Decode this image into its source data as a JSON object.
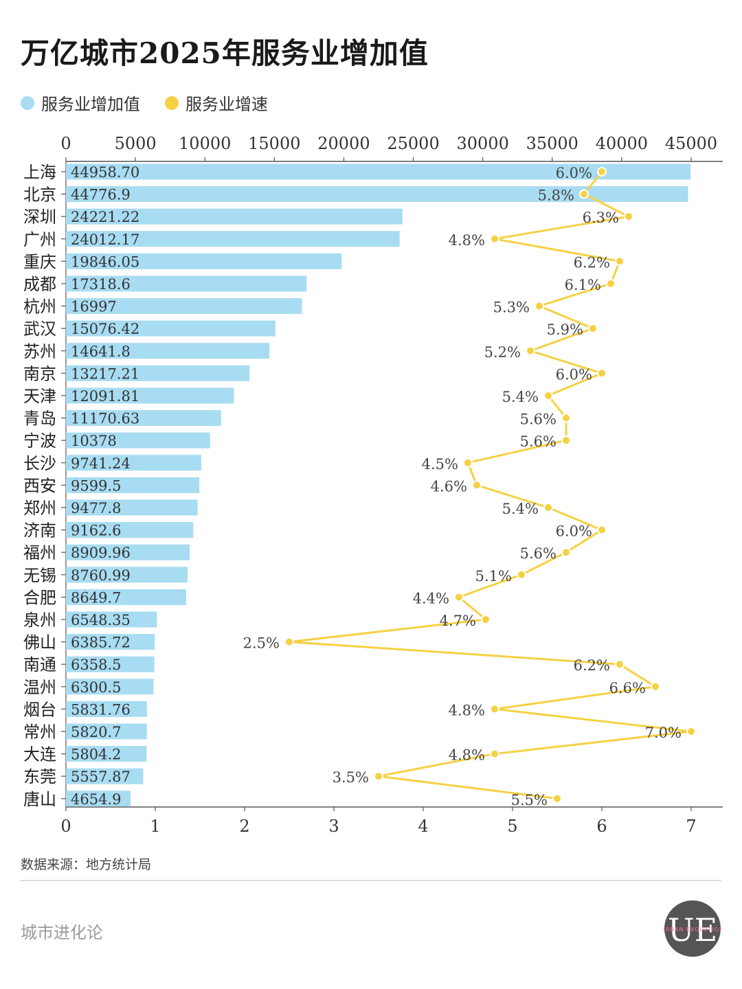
{
  "title": "万亿城市2025年服务业增加值",
  "legend": [
    {
      "label": "服务业增加值",
      "color": "#a8dcf2"
    },
    {
      "label": "服务业增速",
      "color": "#f5d142"
    }
  ],
  "source": "数据来源：地方统计局",
  "brand": "城市进化论",
  "logo": {
    "mark": "UE",
    "text": "URBAN EVOLUTION"
  },
  "chart_data": {
    "type": "bar",
    "orientation": "horizontal",
    "categories": [
      "上海",
      "北京",
      "深圳",
      "广州",
      "重庆",
      "成都",
      "杭州",
      "武汉",
      "苏州",
      "南京",
      "天津",
      "青岛",
      "宁波",
      "长沙",
      "西安",
      "郑州",
      "济南",
      "福州",
      "无锡",
      "合肥",
      "泉州",
      "佛山",
      "南通",
      "温州",
      "烟台",
      "常州",
      "大连",
      "东莞",
      "唐山"
    ],
    "series": [
      {
        "name": "服务业增加值",
        "type": "bar",
        "axis": "top",
        "color": "#a8dcf2",
        "value_labels": [
          "44958.70",
          "44776.9",
          "24221.22",
          "24012.17",
          "19846.05",
          "17318.6",
          "16997",
          "15076.42",
          "14641.8",
          "13217.21",
          "12091.81",
          "11170.63",
          "10378",
          "9741.24",
          "9599.5",
          "9477.8",
          "9162.6",
          "8909.96",
          "8760.99",
          "8649.7",
          "6548.35",
          "6385.72",
          "6358.5",
          "6300.5",
          "5831.76",
          "5820.7",
          "5804.2",
          "5557.87",
          "4654.9"
        ]
      },
      {
        "name": "服务业增速",
        "type": "line",
        "axis": "bottom",
        "color": "#f5d142",
        "values": [
          6.0,
          5.8,
          6.3,
          4.8,
          6.2,
          6.1,
          5.3,
          5.9,
          5.2,
          6.0,
          5.4,
          5.6,
          5.6,
          4.5,
          4.6,
          5.4,
          6.0,
          5.6,
          5.1,
          4.4,
          4.7,
          2.5,
          6.2,
          6.6,
          4.8,
          7.0,
          4.8,
          3.5,
          5.5
        ],
        "value_labels": [
          "6.0%",
          "5.8%",
          "6.3%",
          "4.8%",
          "6.2%",
          "6.1%",
          "5.3%",
          "5.9%",
          "5.2%",
          "6.0%",
          "5.4%",
          "5.6%",
          "5.6%",
          "4.5%",
          "4.6%",
          "5.4%",
          "6.0%",
          "5.6%",
          "5.1%",
          "4.4%",
          "4.7%",
          "2.5%",
          "6.2%",
          "6.6%",
          "4.8%",
          "7.0%",
          "4.8%",
          "3.5%",
          "5.5%"
        ]
      }
    ],
    "x_top": {
      "range": [
        0,
        45000
      ],
      "ticks": [
        0,
        5000,
        10000,
        15000,
        20000,
        25000,
        30000,
        35000,
        40000,
        45000
      ]
    },
    "x_bottom": {
      "range": [
        0,
        7
      ],
      "ticks": [
        0,
        1,
        2,
        3,
        4,
        5,
        6,
        7
      ]
    },
    "grid": false
  }
}
